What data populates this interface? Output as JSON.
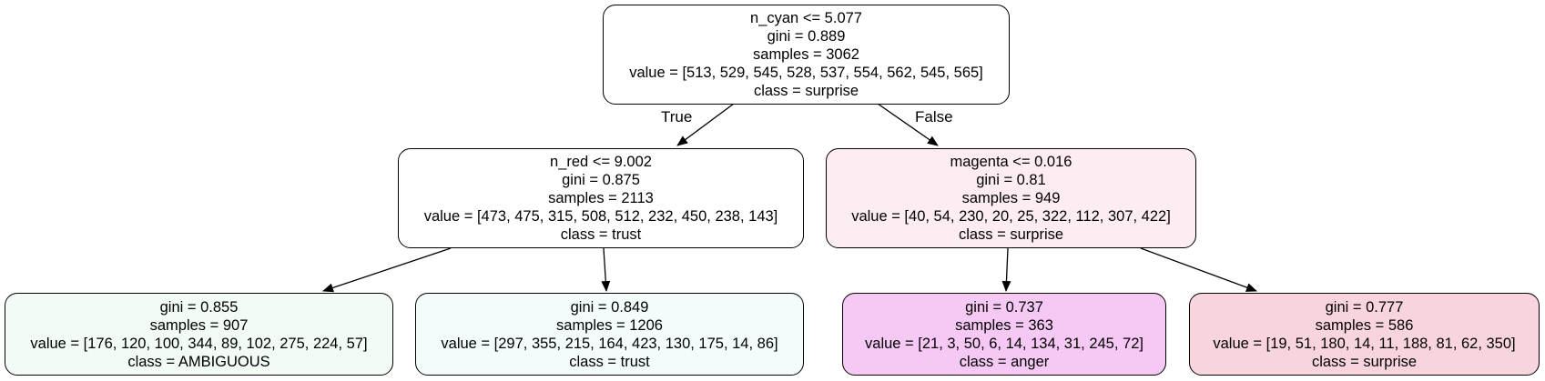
{
  "tree": {
    "edge_labels": {
      "true_label": "True",
      "false_label": "False"
    },
    "nodes": [
      {
        "id": "n0",
        "fill": "#ffffff",
        "lines": [
          "n_cyan <= 5.077",
          "gini = 0.889",
          "samples = 3062",
          "value = [513, 529, 545, 528, 537, 554, 562, 545, 565]",
          "class = surprise"
        ]
      },
      {
        "id": "n1",
        "fill": "#ffffff",
        "lines": [
          "n_red <= 9.002",
          "gini = 0.875",
          "samples = 2113",
          "value = [473, 475, 315, 508, 512, 232, 450, 238, 143]",
          "class = trust"
        ]
      },
      {
        "id": "n2",
        "fill": "#fdedf2",
        "lines": [
          "magenta <= 0.016",
          "gini = 0.81",
          "samples = 949",
          "value = [40, 54, 230, 20, 25, 322, 112, 307, 422]",
          "class = surprise"
        ]
      },
      {
        "id": "n3",
        "fill": "#f2fbf4",
        "lines": [
          "gini = 0.855",
          "samples = 907",
          "value = [176, 120, 100, 344, 89, 102, 275, 224, 57]",
          "class = AMBIGUOUS"
        ]
      },
      {
        "id": "n4",
        "fill": "#f3fcfb",
        "lines": [
          "gini = 0.849",
          "samples = 1206",
          "value = [297, 355, 215, 164, 423, 130, 175, 14, 86]",
          "class = trust"
        ]
      },
      {
        "id": "n5",
        "fill": "#f6c9f5",
        "lines": [
          "gini = 0.737",
          "samples = 363",
          "value = [21, 3, 50, 6, 14, 134, 31, 245, 72]",
          "class = anger"
        ]
      },
      {
        "id": "n6",
        "fill": "#f8d4dd",
        "lines": [
          "gini = 0.777",
          "samples = 586",
          "value = [19, 51, 180, 14, 11, 188, 81, 62, 350]",
          "class = surprise"
        ]
      }
    ]
  }
}
